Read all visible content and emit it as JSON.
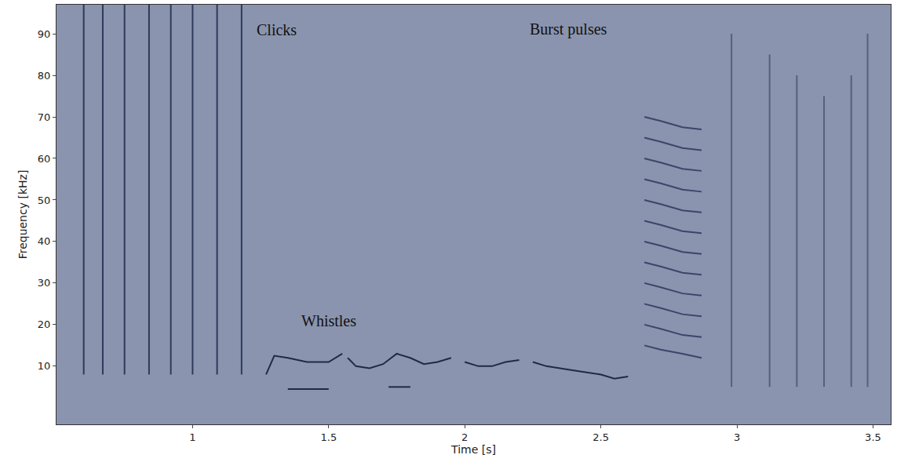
{
  "chart_data": {
    "type": "line",
    "xlabel": "Time [s]",
    "ylabel": "Frequency [kHz]",
    "xlim": [
      0.5,
      3.565
    ],
    "ylim": [
      -4,
      97
    ],
    "xticks": [
      1,
      1.5,
      2,
      2.5,
      3,
      3.5
    ],
    "yticks": [
      10,
      20,
      30,
      40,
      50,
      60,
      70,
      80,
      90
    ],
    "grid": false,
    "series": [
      {
        "color": "#2e3a5c",
        "x": [
          0.6,
          0.6,
          null,
          0.67,
          0.67,
          null,
          0.75,
          0.75,
          null,
          0.84,
          0.84,
          null,
          0.92,
          0.92,
          null,
          1.0,
          1.0,
          null,
          1.09,
          1.09,
          null,
          1.18,
          1.18
        ],
        "values": [
          8,
          97,
          null,
          8,
          97,
          null,
          8,
          97,
          null,
          8,
          97,
          null,
          8,
          97,
          null,
          8,
          97,
          null,
          8,
          97,
          null,
          8,
          97
        ]
      },
      {
        "color": "#1f2a45",
        "x": [
          1.27,
          1.3,
          1.35,
          1.42,
          1.5,
          1.55,
          null,
          1.57,
          1.6,
          1.65,
          1.7,
          1.75,
          1.8,
          1.85,
          1.9,
          1.95,
          null,
          2.0,
          2.05,
          2.1,
          2.15,
          2.2,
          null,
          2.25,
          2.3,
          2.4,
          2.5,
          2.55,
          2.6,
          null,
          1.35,
          1.5,
          null,
          1.72,
          1.8
        ],
        "values": [
          8,
          12.5,
          12,
          11,
          11,
          13,
          null,
          12,
          10,
          9.5,
          10.5,
          13,
          12,
          10.5,
          11,
          12,
          null,
          11,
          10,
          10,
          11,
          11.5,
          null,
          11,
          10,
          9,
          8,
          7,
          7.5,
          null,
          4.5,
          4.5,
          null,
          5,
          5
        ]
      },
      {
        "color": "#3a466a",
        "x": [
          2.66,
          2.72,
          2.8,
          2.87,
          null,
          2.66,
          2.72,
          2.8,
          2.87,
          null,
          2.66,
          2.72,
          2.8,
          2.87,
          null,
          2.66,
          2.72,
          2.8,
          2.87,
          null,
          2.66,
          2.72,
          2.8,
          2.87,
          null,
          2.66,
          2.72,
          2.8,
          2.87,
          null,
          2.66,
          2.72,
          2.8,
          2.87,
          null,
          2.66,
          2.72,
          2.8,
          2.87,
          null,
          2.66,
          2.72,
          2.8,
          2.87,
          null,
          2.66,
          2.72,
          2.8,
          2.87,
          null,
          2.66,
          2.72,
          2.8,
          2.87,
          null,
          2.66,
          2.72,
          2.8,
          2.87
        ],
        "values": [
          15,
          14,
          13,
          12,
          null,
          20,
          19,
          17.5,
          17,
          null,
          25,
          24,
          22.5,
          22,
          null,
          30,
          29,
          27.5,
          27,
          null,
          35,
          34,
          32.5,
          32,
          null,
          40,
          39,
          37.5,
          37,
          null,
          45,
          44,
          42.5,
          42,
          null,
          50,
          49,
          47.5,
          47,
          null,
          55,
          54,
          52.5,
          52,
          null,
          60,
          59,
          57.5,
          57,
          null,
          65,
          64,
          62.5,
          62,
          null,
          70,
          69,
          67.5,
          67
        ]
      },
      {
        "color": "#55607f",
        "x": [
          2.98,
          2.98,
          null,
          3.12,
          3.12,
          null,
          3.22,
          3.22,
          null,
          3.32,
          3.32,
          null,
          3.42,
          3.42,
          null,
          3.48,
          3.48
        ],
        "values": [
          5,
          90,
          null,
          5,
          85,
          null,
          5,
          80,
          null,
          5,
          75,
          null,
          5,
          80,
          null,
          5,
          90
        ]
      }
    ],
    "annotations": [
      {
        "text": "Clicks",
        "x": 1.31,
        "y": 91
      },
      {
        "text": "Burst pulses",
        "x": 2.38,
        "y": 91
      },
      {
        "text": "Whistles",
        "x": 1.5,
        "y": 21
      }
    ]
  }
}
